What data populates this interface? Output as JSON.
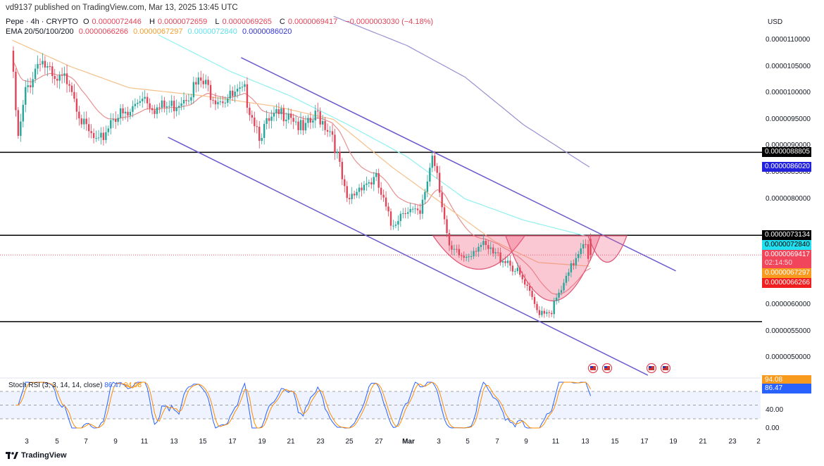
{
  "header": {
    "published": "vd9137 published on TradingView.com, Mar 13, 2025 13:45 UTC",
    "symbol": "Pepe · 4h · CRYPTO",
    "o_label": "O",
    "o": "0.0000072446",
    "h_label": "H",
    "h": "0.0000072659",
    "l_label": "L",
    "l": "0.0000069265",
    "c_label": "C",
    "c": "0.0000069417",
    "change": "−0.0000003030 (−4.18%)",
    "ema_label": "EMA 20/50/100/200",
    "ema20": "0.0000066266",
    "ema50": "0.0000067297",
    "ema100": "0.0000072840",
    "ema200": "0.0000086020"
  },
  "currency": "USD",
  "price_ticks": [
    "0.0000110000",
    "0.0000105000",
    "0.0000100000",
    "0.0000095000",
    "0.0000090000",
    "0.0000085000",
    "0.0000080000",
    "0.0000060000",
    "0.0000055000",
    "0.0000050000"
  ],
  "price_boxes": [
    {
      "text": "0.0000088805",
      "color": "#000000",
      "price": 8.8805e-06
    },
    {
      "text": "0.0000086020",
      "color": "#2222dd",
      "price": 8.602e-06
    },
    {
      "text": "0.0000073134",
      "color": "#000000",
      "price": 7.3134e-06
    },
    {
      "text": "0.0000072840",
      "color": "#22e0f0",
      "price": 7.284e-06,
      "dark": true
    },
    {
      "text": "0.0000069417",
      "sub": "02:14:50",
      "color": "#f0455a",
      "price": 6.9417e-06
    },
    {
      "text": "0.0000067297",
      "color": "#f79a1e",
      "price": 6.7297e-06
    },
    {
      "text": "0.0000066266",
      "color": "#f01e1e",
      "price": 6.6266e-06
    }
  ],
  "time_labels": [
    "3",
    "5",
    "7",
    "9",
    "11",
    "13",
    "15",
    "17",
    "19",
    "21",
    "23",
    "25",
    "27",
    "Mar",
    "3",
    "5",
    "7",
    "9",
    "11",
    "13",
    "15",
    "17",
    "19",
    "21",
    "23",
    "2"
  ],
  "stoch": {
    "label": "Stoch RSI (3, 3, 14, 14, close)",
    "k": "86.47",
    "d": "94.08",
    "k_color": "#2962ff",
    "d_color": "#ff8c00",
    "ticks": [
      "40.00",
      "0.00"
    ],
    "band": [
      20,
      80
    ]
  },
  "brand": "TradingView",
  "chart_data": {
    "type": "candlestick",
    "symbol": "Pepe",
    "interval": "4h",
    "colors": {
      "up": "#26a69a",
      "down": "#e0455a",
      "ema20": "#e89090",
      "ema50": "#f5c08a",
      "ema100": "#8ff0f0",
      "ema200": "#9a8fd0",
      "channel": "#6a5acd",
      "cup": "#f06080"
    },
    "horizontal_levels": [
      8.8805e-06,
      7.3134e-06,
      5.6817e-06
    ],
    "last_price": 6.9417e-06,
    "ylim": [
      4.5e-06,
      1.15e-05
    ],
    "price_path": [
      [
        "2025-02-02T00:00",
        1.08e-05
      ],
      [
        "2025-02-02T12:00",
        9.1e-06
      ],
      [
        "2025-02-03T00:00",
        1e-05
      ],
      [
        "2025-02-04T00:00",
        1.07e-05
      ],
      [
        "2025-02-05T00:00",
        1.015e-05
      ],
      [
        "2025-02-06T00:00",
        1.03e-05
      ],
      [
        "2025-02-07T00:00",
        9.35e-06
      ],
      [
        "2025-02-08T00:00",
        9e-06
      ],
      [
        "2025-02-09T00:00",
        9.6e-06
      ],
      [
        "2025-02-10T00:00",
        9.55e-06
      ],
      [
        "2025-02-11T00:00",
        1e-05
      ],
      [
        "2025-02-12T00:00",
        9.7e-06
      ],
      [
        "2025-02-13T00:00",
        9.75e-06
      ],
      [
        "2025-02-14T00:00",
        1e-05
      ],
      [
        "2025-02-15T00:00",
        1.02e-05
      ],
      [
        "2025-02-16T00:00",
        9.95e-06
      ],
      [
        "2025-02-17T00:00",
        9.9e-06
      ],
      [
        "2025-02-18T00:00",
        1e-05
      ],
      [
        "2025-02-19T00:00",
        9.25e-06
      ],
      [
        "2025-02-20T00:00",
        9.5e-06
      ],
      [
        "2025-02-21T00:00",
        9.7e-06
      ],
      [
        "2025-02-22T00:00",
        9.25e-06
      ],
      [
        "2025-02-23T00:00",
        9.6e-06
      ],
      [
        "2025-02-24T00:00",
        9.25e-06
      ],
      [
        "2025-02-25T00:00",
        7.9e-06
      ],
      [
        "2025-02-26T00:00",
        8.3e-06
      ],
      [
        "2025-02-27T00:00",
        8.35e-06
      ],
      [
        "2025-02-28T00:00",
        7.5e-06
      ],
      [
        "2025-03-01T00:00",
        7.85e-06
      ],
      [
        "2025-03-02T00:00",
        7.65e-06
      ],
      [
        "2025-03-02T20:00",
        8.85e-06
      ],
      [
        "2025-03-03T04:00",
        8.55e-06
      ],
      [
        "2025-03-04T00:00",
        7e-06
      ],
      [
        "2025-03-05T00:00",
        6.9e-06
      ],
      [
        "2025-03-06T00:00",
        7.15e-06
      ],
      [
        "2025-03-07T00:00",
        6.95e-06
      ],
      [
        "2025-03-08T00:00",
        6.85e-06
      ],
      [
        "2025-03-09T00:00",
        6.45e-06
      ],
      [
        "2025-03-10T00:00",
        5.9e-06
      ],
      [
        "2025-03-11T00:00",
        5.9e-06
      ],
      [
        "2025-03-12T00:00",
        6.45e-06
      ],
      [
        "2025-03-13T00:00",
        7.15e-06
      ],
      [
        "2025-03-13T08:00",
        7.2446e-06
      ],
      [
        "2025-03-13T12:00",
        6.9417e-06
      ]
    ],
    "ema50_path": [
      [
        "2025-02-02T00:00",
        1.1e-05
      ],
      [
        "2025-02-06T00:00",
        1.05e-05
      ],
      [
        "2025-02-10T00:00",
        1.01e-05
      ],
      [
        "2025-02-15T00:00",
        9.95e-06
      ],
      [
        "2025-02-20T00:00",
        9.75e-06
      ],
      [
        "2025-02-24T00:00",
        9.5e-06
      ],
      [
        "2025-02-28T00:00",
        8.6e-06
      ],
      [
        "2025-03-03T00:00",
        8e-06
      ],
      [
        "2025-03-07T00:00",
        7.2e-06
      ],
      [
        "2025-03-10T00:00",
        6.8e-06
      ],
      [
        "2025-03-13T12:00",
        6.7297e-06
      ]
    ],
    "ema100_path": [
      [
        "2025-02-12T00:00",
        1.11e-05
      ],
      [
        "2025-02-17T00:00",
        1.04e-05
      ],
      [
        "2025-02-21T00:00",
        9.95e-06
      ],
      [
        "2025-02-25T00:00",
        9.4e-06
      ],
      [
        "2025-03-01T00:00",
        8.8e-06
      ],
      [
        "2025-03-05T00:00",
        8e-06
      ],
      [
        "2025-03-09T00:00",
        7.6e-06
      ],
      [
        "2025-03-13T12:00",
        7.284e-06
      ]
    ],
    "ema200_path": [
      [
        "2025-02-24T00:00",
        1.145e-05
      ],
      [
        "2025-03-01T00:00",
        1.09e-05
      ],
      [
        "2025-03-05T00:00",
        1.03e-05
      ],
      [
        "2025-03-09T00:00",
        9.4e-06
      ],
      [
        "2025-03-13T12:00",
        8.602e-06
      ]
    ],
    "channel_upper": [
      [
        "2025-02-17T16:00",
        1.067e-05
      ],
      [
        "2025-03-19T10:00",
        6.64e-06
      ]
    ],
    "channel_lower": [
      [
        "2025-02-12T16:00",
        9.165e-06
      ],
      [
        "2025-03-17T12:00",
        4.67e-06
      ]
    ]
  }
}
